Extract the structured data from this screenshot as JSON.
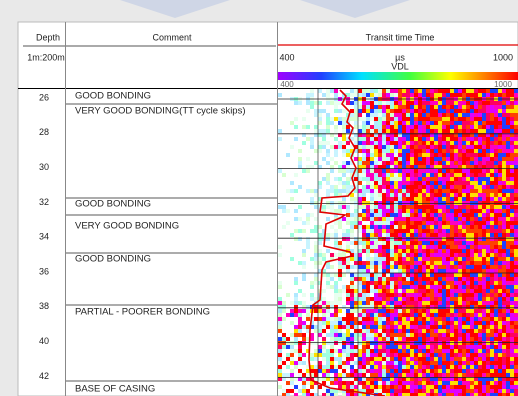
{
  "header": {
    "depth_title": "Depth",
    "scale": "1m:200m",
    "comment_title": "Comment",
    "track_title": "Transit time Time",
    "track_min": "400",
    "track_unit": "µs",
    "track_max": "1000",
    "vdl_label": "VDL",
    "vdl_min": "400",
    "vdl_max": "1000"
  },
  "depths": [
    "26",
    "28",
    "30",
    "32",
    "34",
    "36",
    "38",
    "40",
    "42"
  ],
  "comments": [
    "GOOD BONDING",
    "VERY GOOD BONDING(TT cycle skips)",
    "GOOD BONDING",
    "VERY GOOD BONDING",
    "GOOD BONDING",
    "PARTIAL - POORER BONDING",
    "BASE OF CASING"
  ]
}
